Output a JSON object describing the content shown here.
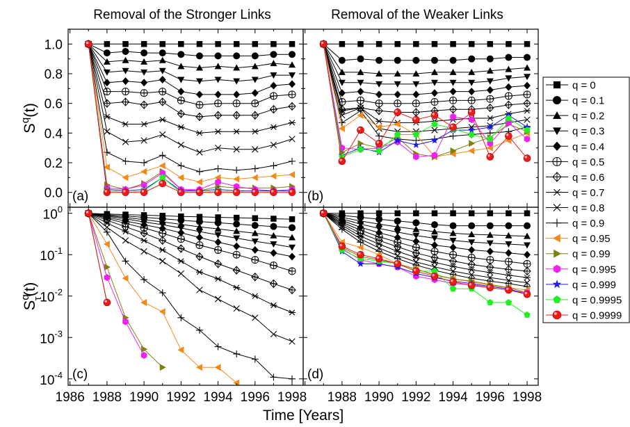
{
  "titles": {
    "left": "Removal of the Stronger Links",
    "right": "Removal of the Weaker Links"
  },
  "xlabel": "Time [Years]",
  "ylabel_top": {
    "main": "S",
    "sup": "q",
    "tail": "(t)"
  },
  "ylabel_bottom": {
    "main": "S",
    "sub": "τ",
    "sup": "q",
    "tail": "(t)"
  },
  "chart_data": {
    "type": "line",
    "x": [
      1987,
      1988,
      1989,
      1990,
      1991,
      1992,
      1993,
      1994,
      1995,
      1996,
      1997,
      1998
    ],
    "xticks": [
      "1986",
      "1988",
      "1990",
      "1992",
      "1994",
      "1996",
      "1998"
    ],
    "xlim": [
      1985.9,
      1998.6
    ],
    "top_ylim": [
      -0.1,
      1.1
    ],
    "top_yticks": [
      "0.0",
      "0.2",
      "0.4",
      "0.6",
      "0.8",
      "1.0"
    ],
    "bottom_ylim": [
      7e-05,
      1.4
    ],
    "bottom_scale": "log",
    "bottom_yticks": [
      {
        "base": "10",
        "exp": "0",
        "value": 1
      },
      {
        "base": "10",
        "exp": "-1",
        "value": 0.1
      },
      {
        "base": "10",
        "exp": "-2",
        "value": 0.01
      },
      {
        "base": "10",
        "exp": "-3",
        "value": 0.001
      },
      {
        "base": "10",
        "exp": "-4",
        "value": 0.0001
      }
    ],
    "series": [
      {
        "name": "q = 0",
        "color": "#000000",
        "marker": "square"
      },
      {
        "name": "q = 0.1",
        "color": "#000000",
        "marker": "circle"
      },
      {
        "name": "q = 0.2",
        "color": "#000000",
        "marker": "triangle-up"
      },
      {
        "name": "q = 0.3",
        "color": "#000000",
        "marker": "triangle-down"
      },
      {
        "name": "q = 0.4",
        "color": "#000000",
        "marker": "diamond"
      },
      {
        "name": "q = 0.5",
        "color": "#000000",
        "marker": "circle-plus"
      },
      {
        "name": "q = 0.6",
        "color": "#000000",
        "marker": "diamond-plus"
      },
      {
        "name": "q = 0.7",
        "color": "#000000",
        "marker": "asterisk"
      },
      {
        "name": "q = 0.8",
        "color": "#000000",
        "marker": "x"
      },
      {
        "name": "q = 0.9",
        "color": "#000000",
        "marker": "plus"
      },
      {
        "name": "q = 0.95",
        "color": "#f28a1a",
        "marker": "triangle-left"
      },
      {
        "name": "q = 0.99",
        "color": "#808010",
        "marker": "triangle-right"
      },
      {
        "name": "q = 0.995",
        "color": "#ee22ee",
        "marker": "hexagon"
      },
      {
        "name": "q = 0.999",
        "color": "#1a1aee",
        "marker": "star"
      },
      {
        "name": "q = 0.9995",
        "color": "#22ee22",
        "marker": "pentagon"
      },
      {
        "name": "q = 0.9999",
        "color": "#ee1a1a",
        "marker": "sphere"
      }
    ],
    "panels": [
      {
        "label": "(a)",
        "scale": "linear",
        "values": [
          [
            1,
            1,
            1,
            1,
            1,
            1,
            1,
            1,
            1,
            1,
            1,
            1
          ],
          [
            1,
            0.94,
            0.95,
            0.94,
            0.94,
            0.93,
            0.92,
            0.92,
            0.92,
            0.92,
            0.93,
            0.93
          ],
          [
            1,
            0.88,
            0.89,
            0.88,
            0.89,
            0.85,
            0.84,
            0.85,
            0.84,
            0.85,
            0.87,
            0.86
          ],
          [
            1,
            0.81,
            0.82,
            0.81,
            0.82,
            0.76,
            0.75,
            0.76,
            0.75,
            0.76,
            0.79,
            0.79
          ],
          [
            1,
            0.74,
            0.75,
            0.74,
            0.76,
            0.68,
            0.66,
            0.66,
            0.66,
            0.67,
            0.72,
            0.73
          ],
          [
            1,
            0.68,
            0.68,
            0.67,
            0.68,
            0.62,
            0.59,
            0.6,
            0.6,
            0.6,
            0.65,
            0.66
          ],
          [
            1,
            0.6,
            0.61,
            0.59,
            0.61,
            0.53,
            0.51,
            0.52,
            0.52,
            0.52,
            0.56,
            0.58
          ],
          [
            1,
            0.51,
            0.46,
            0.46,
            0.49,
            0.44,
            0.4,
            0.41,
            0.41,
            0.41,
            0.44,
            0.47
          ],
          [
            1,
            0.41,
            0.34,
            0.35,
            0.39,
            0.32,
            0.27,
            0.3,
            0.29,
            0.29,
            0.32,
            0.36
          ],
          [
            1,
            0.27,
            0.21,
            0.2,
            0.25,
            0.18,
            0.14,
            0.16,
            0.15,
            0.16,
            0.18,
            0.21
          ],
          [
            1,
            0.17,
            0.1,
            0.14,
            0.18,
            0.1,
            0.07,
            0.1,
            0.09,
            0.1,
            0.11,
            0.12
          ],
          [
            1,
            0.05,
            0.02,
            0.06,
            0.14,
            0.02,
            0.01,
            0.04,
            0.03,
            0.03,
            0.03,
            0.04
          ],
          [
            1,
            0.03,
            0.02,
            0.05,
            0.13,
            0.02,
            0.02,
            0.07,
            0.04,
            0.02,
            0.01,
            0.02
          ],
          [
            1,
            0.02,
            0.01,
            0.02,
            0.1,
            0.01,
            0.01,
            0.02,
            0.01,
            0.01,
            0.01,
            0.01
          ],
          [
            1,
            0.01,
            0,
            0.01,
            0.1,
            0,
            0,
            0.01,
            0,
            0,
            0,
            0
          ],
          [
            1,
            0,
            0,
            0,
            0.06,
            0,
            0,
            0,
            0,
            0,
            0,
            0
          ]
        ]
      },
      {
        "label": "(b)",
        "scale": "linear",
        "values": [
          [
            1,
            1,
            1,
            1,
            1,
            1,
            1,
            1,
            1,
            1,
            1,
            1
          ],
          [
            1,
            0.89,
            0.9,
            0.89,
            0.89,
            0.89,
            0.89,
            0.89,
            0.9,
            0.9,
            0.91,
            0.91
          ],
          [
            1,
            0.81,
            0.81,
            0.8,
            0.8,
            0.8,
            0.81,
            0.81,
            0.81,
            0.82,
            0.83,
            0.84
          ],
          [
            1,
            0.74,
            0.74,
            0.73,
            0.73,
            0.73,
            0.74,
            0.74,
            0.74,
            0.75,
            0.77,
            0.78
          ],
          [
            1,
            0.67,
            0.68,
            0.66,
            0.66,
            0.66,
            0.67,
            0.68,
            0.68,
            0.69,
            0.71,
            0.72
          ],
          [
            1,
            0.61,
            0.62,
            0.6,
            0.6,
            0.6,
            0.61,
            0.62,
            0.62,
            0.63,
            0.65,
            0.66
          ],
          [
            1,
            0.56,
            0.57,
            0.55,
            0.54,
            0.54,
            0.55,
            0.56,
            0.56,
            0.57,
            0.59,
            0.6
          ],
          [
            1,
            0.55,
            0.57,
            0.48,
            0.47,
            0.47,
            0.48,
            0.49,
            0.5,
            0.5,
            0.53,
            0.55
          ],
          [
            1,
            0.52,
            0.57,
            0.43,
            0.41,
            0.41,
            0.42,
            0.43,
            0.44,
            0.45,
            0.47,
            0.49
          ],
          [
            1,
            0.47,
            0.55,
            0.38,
            0.36,
            0.35,
            0.36,
            0.38,
            0.39,
            0.4,
            0.41,
            0.44
          ],
          [
            1,
            0.43,
            0.52,
            0.44,
            0.46,
            0.39,
            0.24,
            0.26,
            0.28,
            0.3,
            0.35,
            0.4
          ],
          [
            1,
            0.27,
            0.33,
            0.3,
            0.37,
            0.26,
            0.24,
            0.28,
            0.33,
            0.37,
            0.46,
            0.41
          ],
          [
            1,
            0.3,
            0.29,
            0.3,
            0.34,
            0.24,
            0.25,
            0.51,
            0.49,
            0.33,
            0.47,
            0.36
          ],
          [
            1,
            0.25,
            0.3,
            0.27,
            0.35,
            0.32,
            0.35,
            0.42,
            0.42,
            0.44,
            0.52,
            0.44
          ],
          [
            1,
            0.24,
            0.29,
            0.28,
            0.39,
            0.39,
            0.46,
            0.43,
            0.39,
            0.36,
            0.5,
            0.42
          ],
          [
            1,
            0.21,
            0.42,
            0.33,
            0.54,
            0.49,
            0.52,
            0.44,
            0.54,
            0.24,
            0.38,
            0.23
          ]
        ]
      },
      {
        "label": "(c)",
        "scale": "log",
        "values": [
          [
            1,
            0.96,
            0.93,
            0.9,
            0.87,
            0.84,
            0.82,
            0.8,
            0.78,
            0.76,
            0.74,
            0.72
          ],
          [
            1,
            0.92,
            0.86,
            0.8,
            0.74,
            0.68,
            0.63,
            0.59,
            0.55,
            0.51,
            0.48,
            0.45
          ],
          [
            1,
            0.88,
            0.79,
            0.7,
            0.62,
            0.54,
            0.47,
            0.42,
            0.37,
            0.33,
            0.29,
            0.26
          ],
          [
            1,
            0.85,
            0.73,
            0.62,
            0.53,
            0.44,
            0.36,
            0.3,
            0.25,
            0.21,
            0.18,
            0.15
          ],
          [
            1,
            0.8,
            0.65,
            0.53,
            0.43,
            0.34,
            0.26,
            0.2,
            0.16,
            0.13,
            0.11,
            0.09
          ],
          [
            1,
            0.75,
            0.57,
            0.44,
            0.33,
            0.24,
            0.17,
            0.13,
            0.1,
            0.075,
            0.055,
            0.04
          ],
          [
            1,
            0.68,
            0.47,
            0.33,
            0.22,
            0.14,
            0.09,
            0.06,
            0.042,
            0.029,
            0.02,
            0.014
          ],
          [
            1,
            0.58,
            0.36,
            0.22,
            0.13,
            0.07,
            0.038,
            0.026,
            0.016,
            0.01,
            0.006,
            0.004
          ],
          [
            1,
            0.46,
            0.22,
            0.12,
            0.07,
            0.035,
            0.014,
            0.0085,
            0.005,
            0.003,
            0.0012,
            0.0008
          ],
          [
            1,
            0.35,
            0.07,
            0.025,
            0.012,
            0.003,
            0.0015,
            0.0006,
            0.0004,
            0.0003,
            0.00011,
            0.0001
          ],
          [
            1,
            0.18,
            0.027,
            0.007,
            0.0042,
            0.0005,
            0.00019,
            0.00019,
            8e-05
          ],
          [
            1,
            0.05,
            0.003,
            0.00052,
            0.00019
          ],
          [
            1,
            0.028,
            0.0024,
            0.00037
          ],
          [
            1,
            0.007
          ],
          [
            1,
            0.007
          ],
          [
            1,
            0.007
          ]
        ]
      },
      {
        "label": "(d)",
        "scale": "log",
        "values": [
          [
            1,
            1,
            1,
            1,
            1,
            1,
            1,
            1,
            1,
            1,
            1,
            1
          ],
          [
            1,
            0.89,
            0.8,
            0.72,
            0.65,
            0.59,
            0.53,
            0.5,
            0.5,
            0.5,
            0.5,
            0.5
          ],
          [
            1,
            0.8,
            0.65,
            0.55,
            0.47,
            0.41,
            0.36,
            0.33,
            0.31,
            0.3,
            0.29,
            0.28
          ],
          [
            1,
            0.73,
            0.55,
            0.43,
            0.35,
            0.29,
            0.25,
            0.22,
            0.2,
            0.19,
            0.18,
            0.17
          ],
          [
            1,
            0.67,
            0.46,
            0.34,
            0.26,
            0.21,
            0.17,
            0.15,
            0.13,
            0.12,
            0.11,
            0.1
          ],
          [
            1,
            0.61,
            0.39,
            0.27,
            0.2,
            0.15,
            0.12,
            0.1,
            0.085,
            0.075,
            0.068,
            0.06
          ],
          [
            1,
            0.56,
            0.33,
            0.22,
            0.155,
            0.11,
            0.085,
            0.07,
            0.058,
            0.05,
            0.044,
            0.04
          ],
          [
            1,
            0.51,
            0.28,
            0.18,
            0.12,
            0.085,
            0.065,
            0.052,
            0.043,
            0.037,
            0.032,
            0.028
          ],
          [
            1,
            0.46,
            0.24,
            0.145,
            0.095,
            0.067,
            0.051,
            0.04,
            0.033,
            0.028,
            0.024,
            0.021
          ],
          [
            1,
            0.41,
            0.2,
            0.12,
            0.08,
            0.056,
            0.042,
            0.033,
            0.027,
            0.023,
            0.02,
            0.017
          ],
          [
            1,
            0.2,
            0.15,
            0.1,
            0.06,
            0.045,
            0.032,
            0.026,
            0.022,
            0.018,
            0.016,
            0.014
          ],
          [
            1,
            0.15,
            0.09,
            0.075,
            0.06,
            0.045,
            0.033,
            0.026,
            0.023,
            0.019,
            0.016,
            0.012
          ],
          [
            1,
            0.14,
            0.075,
            0.06,
            0.05,
            0.03,
            0.025,
            0.02,
            0.019,
            0.016,
            0.014,
            0.012
          ],
          [
            1,
            0.12,
            0.06,
            0.06,
            0.05,
            0.035,
            0.028,
            0.023,
            0.02,
            0.017,
            0.015,
            0.011
          ],
          [
            1,
            0.13,
            0.08,
            0.07,
            0.06,
            0.04,
            0.04,
            0.015,
            0.015,
            0.007,
            0.007,
            0.0035
          ],
          [
            1,
            0.16,
            0.1,
            0.08,
            0.06,
            0.04,
            0.03,
            0.022,
            0.018,
            0.016,
            0.014,
            0.011
          ]
        ]
      }
    ]
  }
}
